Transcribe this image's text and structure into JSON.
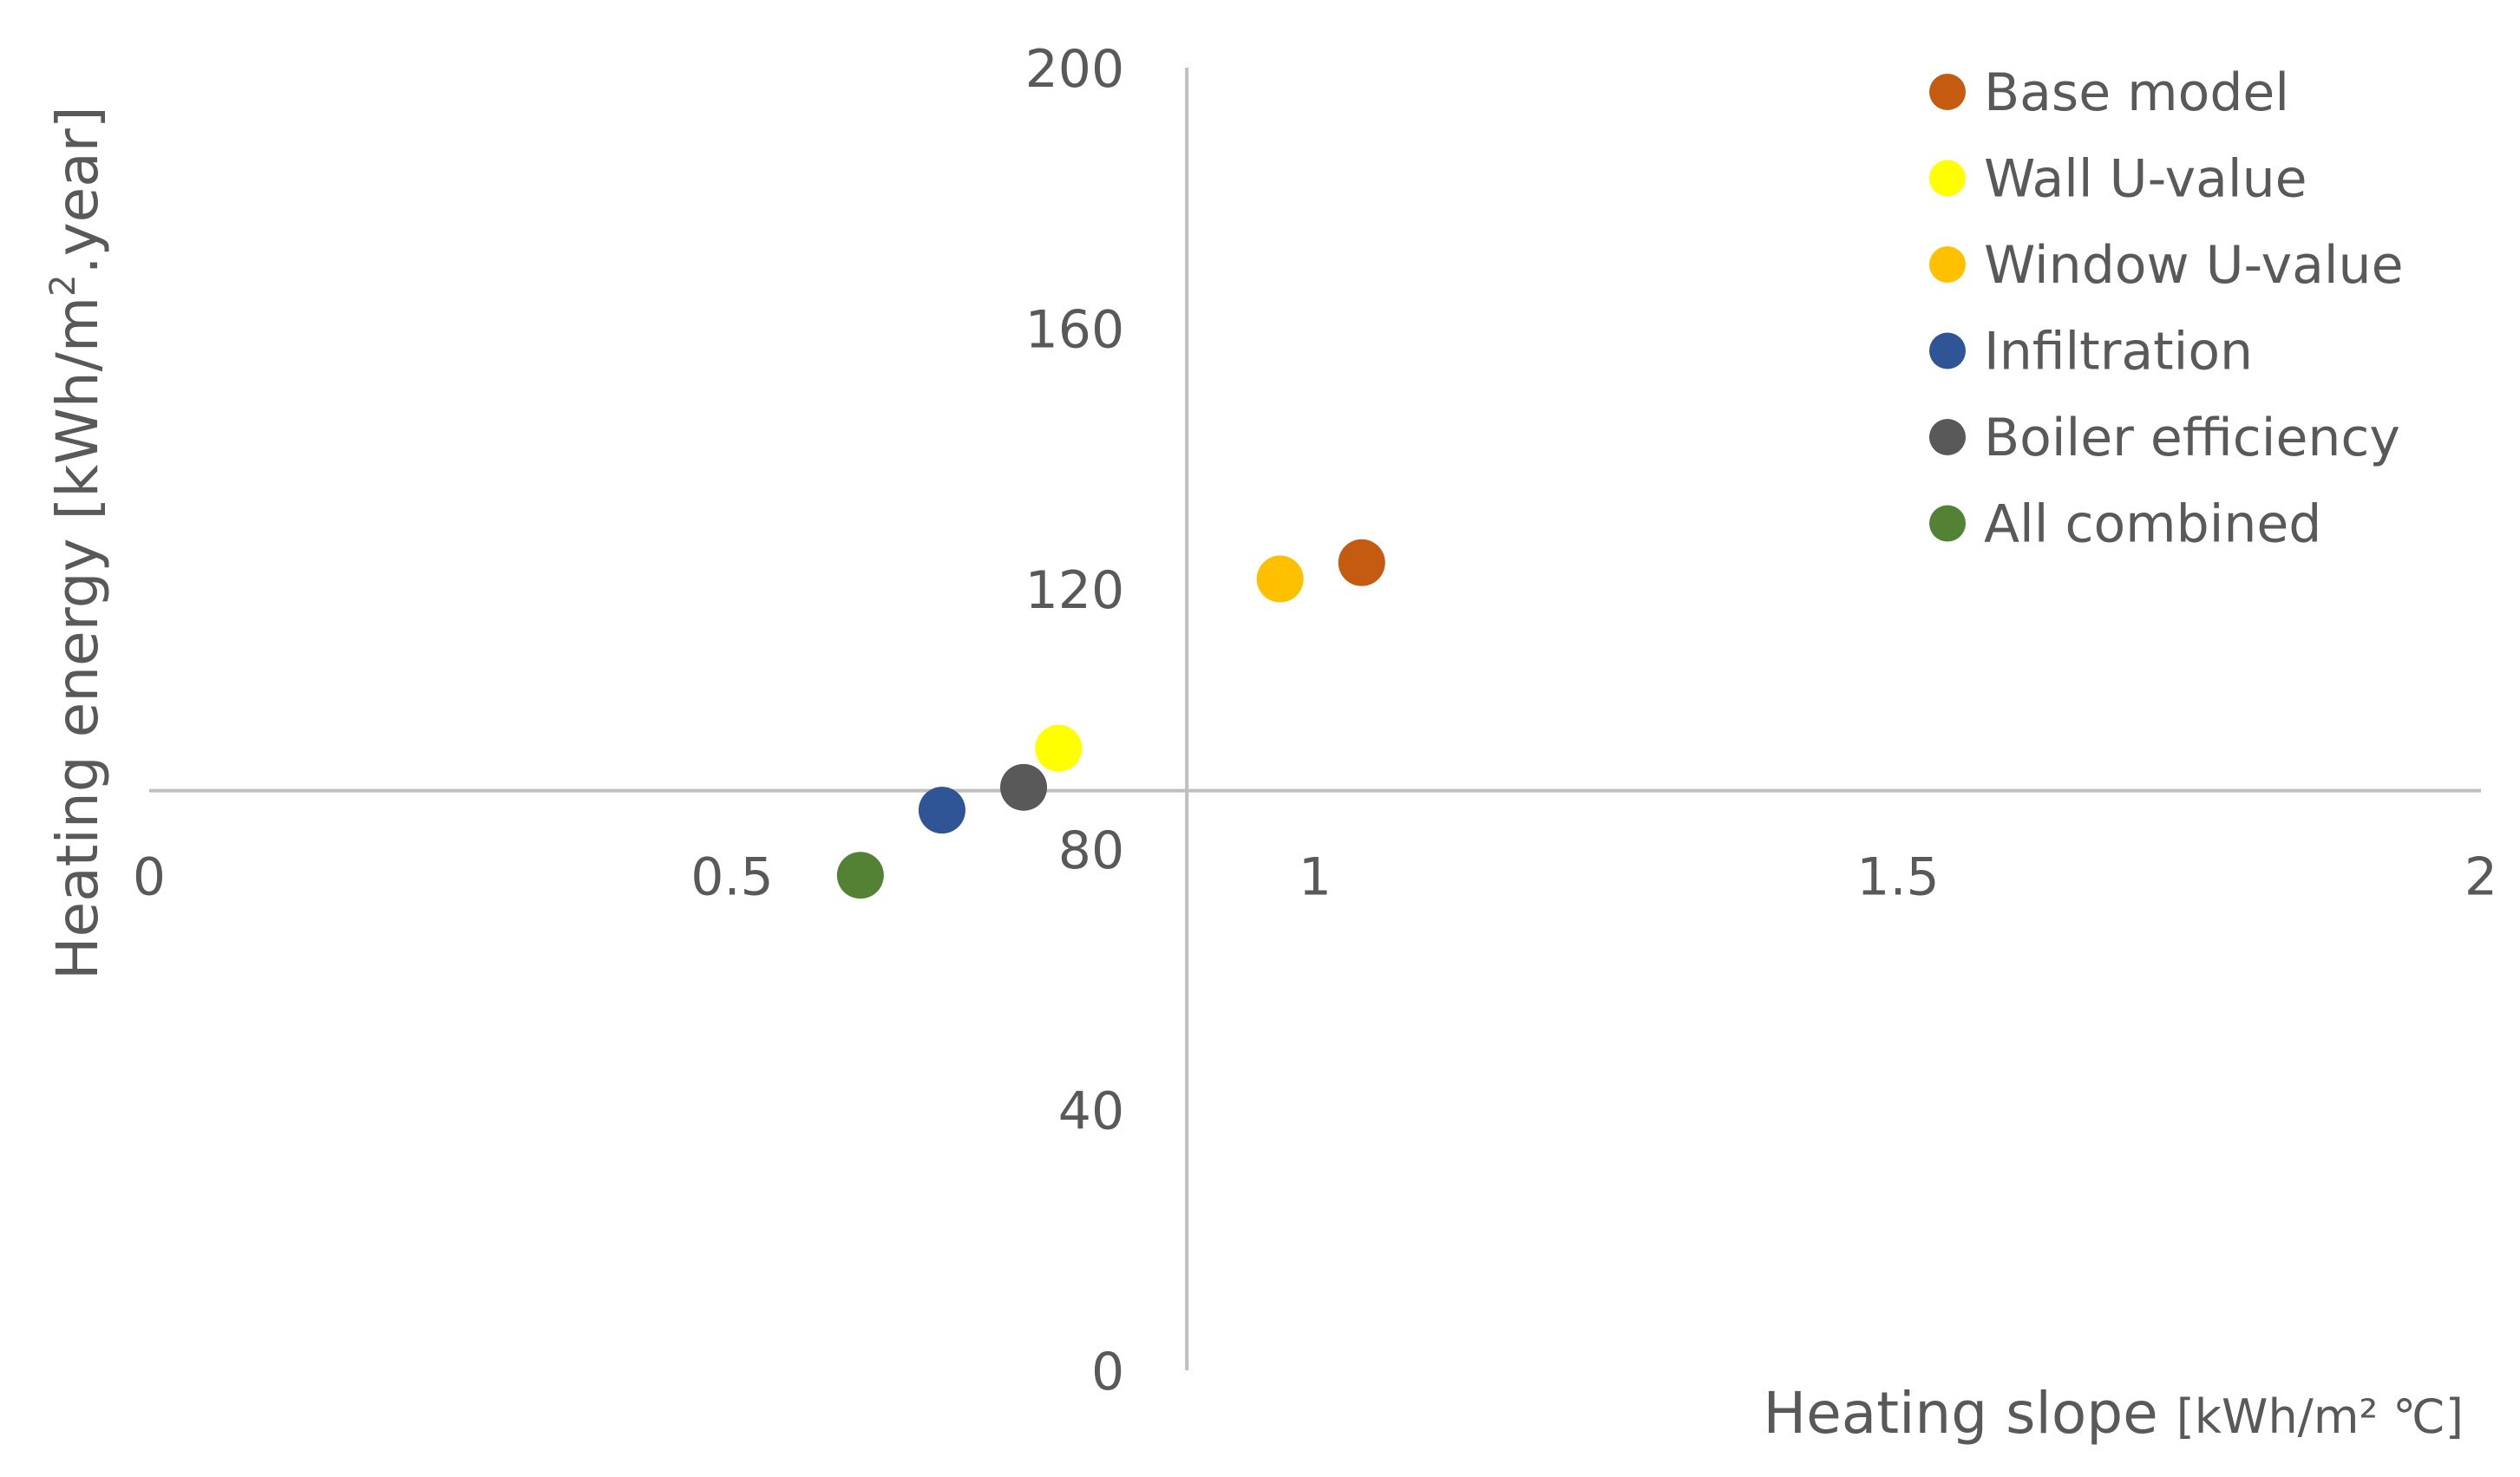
{
  "chart_data": {
    "type": "scatter",
    "title": "",
    "xlabel": "Heating slope",
    "xlabel_unit": "[kWh/m² ℃]",
    "ylabel": "Heating energy [kWh/m",
    "ylabel_sup": "2",
    "ylabel_suffix": ".year]",
    "xlim": [
      0,
      2
    ],
    "ylim": [
      0,
      200
    ],
    "x_ticks": [
      "0",
      "0.5",
      "1",
      "1.5",
      "2"
    ],
    "y_ticks": [
      "0",
      "40",
      "80",
      "120",
      "160",
      "200"
    ],
    "x_crosses_y_at": 89,
    "y_crosses_x_at": 0.89,
    "grid": false,
    "legend_position": "top-right",
    "series": [
      {
        "name": "Base model",
        "color": "#c55a11",
        "points": [
          {
            "x": 1.04,
            "y": 124
          }
        ]
      },
      {
        "name": "Wall U-value",
        "color": "#ffff00",
        "points": [
          {
            "x": 0.78,
            "y": 95.5
          }
        ]
      },
      {
        "name": "Window U-value",
        "color": "#ffc000",
        "points": [
          {
            "x": 0.97,
            "y": 121.5
          }
        ]
      },
      {
        "name": "Infiltration",
        "color": "#2f5597",
        "points": [
          {
            "x": 0.68,
            "y": 86
          }
        ]
      },
      {
        "name": "Boiler efficiency",
        "color": "#595959",
        "points": [
          {
            "x": 0.75,
            "y": 89.5
          }
        ]
      },
      {
        "name": "All combined",
        "color": "#548235",
        "points": [
          {
            "x": 0.61,
            "y": 76
          }
        ]
      }
    ]
  }
}
